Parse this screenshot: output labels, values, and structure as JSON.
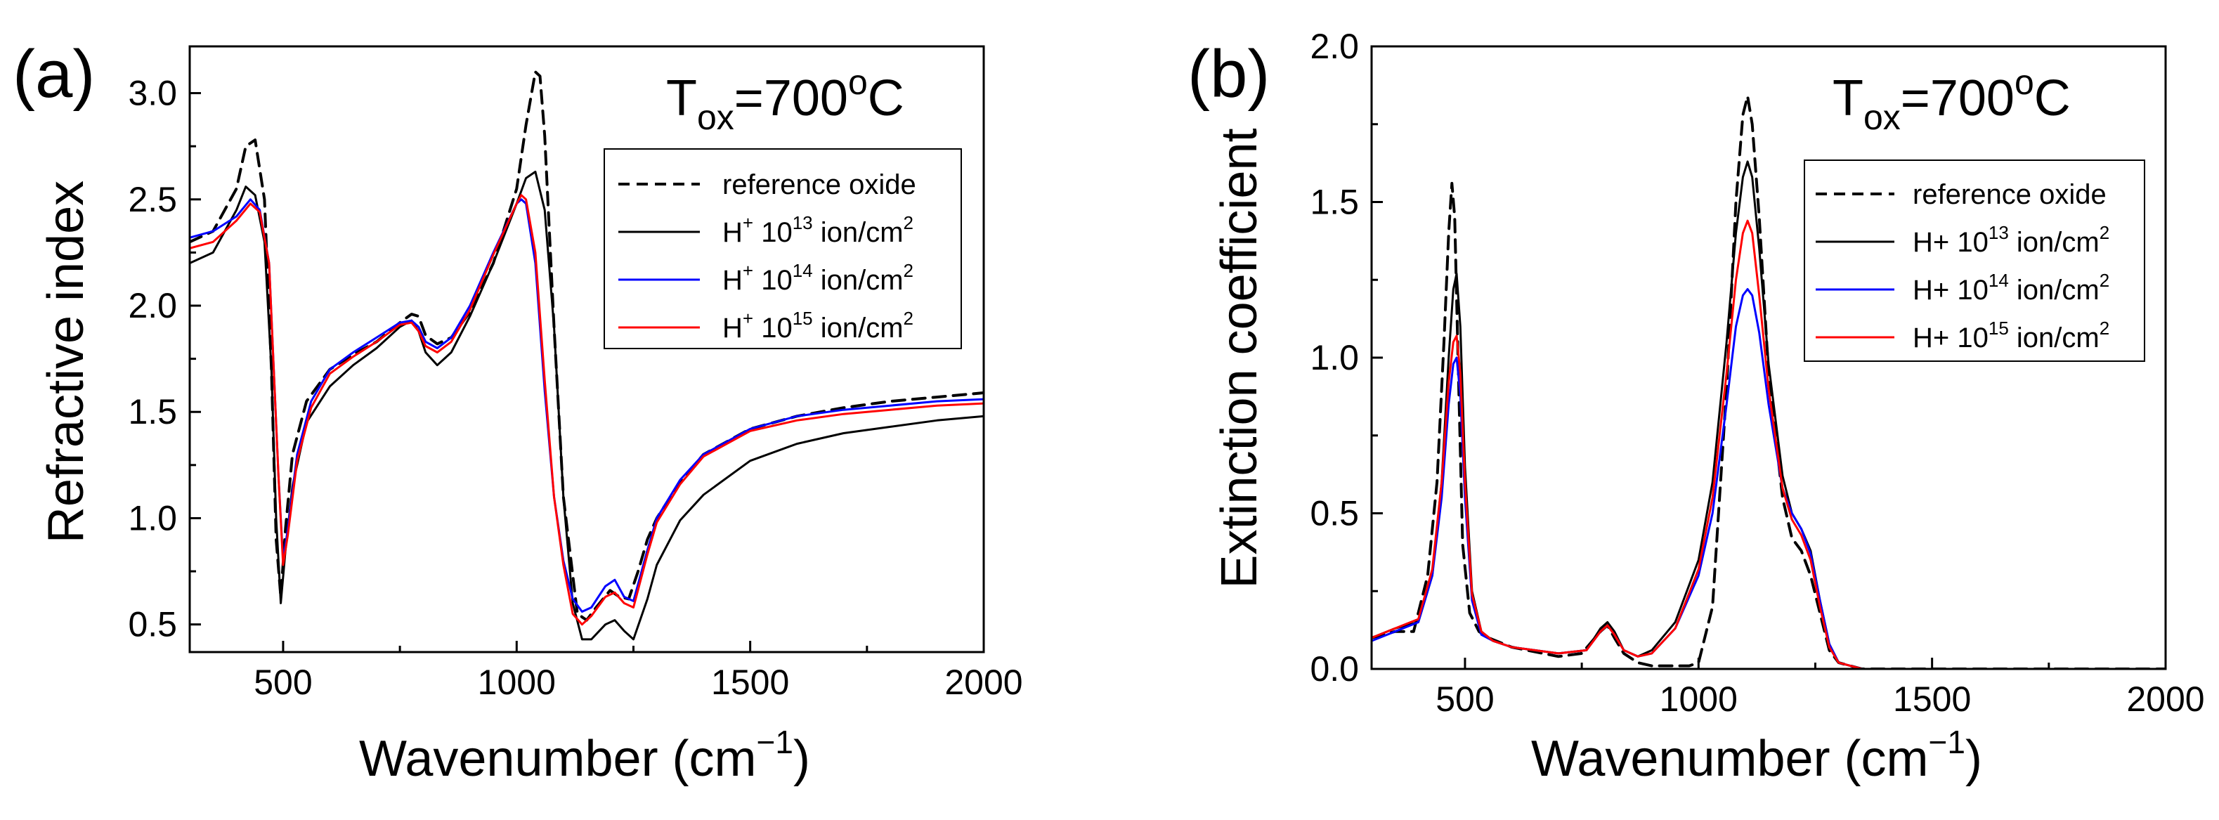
{
  "panels": [
    {
      "label": "(a)",
      "temperature": {
        "prefix": "T",
        "subscript": "ox",
        "equals": "=",
        "value": "700",
        "degree": "o",
        "unit": "C"
      },
      "legend": [
        {
          "text": "reference oxide"
        },
        {
          "base": "H",
          "sup1": "+",
          "mid": " 10",
          "sup2": "13",
          "tail": " ion/cm",
          "sup3": "2"
        },
        {
          "base": "H",
          "sup1": "+",
          "mid": " 10",
          "sup2": "14",
          "tail": " ion/cm",
          "sup3": "2"
        },
        {
          "base": "H",
          "sup1": "+",
          "mid": " 10",
          "sup2": "15",
          "tail": " ion/cm",
          "sup3": "2"
        }
      ],
      "ylabel": "Refractive index",
      "xlabel_main": "Wavenumber (cm",
      "xlabel_sup": "−1",
      "xlabel_end": ")"
    },
    {
      "label": "(b)",
      "temperature": {
        "prefix": "T",
        "subscript": "ox",
        "equals": "=",
        "value": "700",
        "degree": "o",
        "unit": "C"
      },
      "legend": [
        {
          "text": "reference oxide"
        },
        {
          "base": "H",
          "sup1": "",
          "mid": "+ 10",
          "sup2": "13",
          "tail": " ion/cm",
          "sup3": "2"
        },
        {
          "base": "H",
          "sup1": "",
          "mid": "+ 10",
          "sup2": "14",
          "tail": " ion/cm",
          "sup3": "2"
        },
        {
          "base": "H",
          "sup1": "",
          "mid": "+ 10",
          "sup2": "15",
          "tail": " ion/cm",
          "sup3": "2"
        }
      ],
      "ylabel": "Extinction coefficient",
      "xlabel_main": "Wavenumber (cm",
      "xlabel_sup": "−1",
      "xlabel_end": ")"
    }
  ],
  "chart_data": [
    {
      "type": "line",
      "title": "",
      "xlabel": "Wavenumber (cm−1)",
      "ylabel": "Refractive index",
      "xlim": [
        300,
        2000
      ],
      "ylim": [
        0.37,
        3.22
      ],
      "xticks": [
        500,
        1000,
        1500,
        2000
      ],
      "xtick_labels": [
        "500",
        "1000",
        "1500",
        "2000"
      ],
      "yticks": [
        0.5,
        1.0,
        1.5,
        2.0,
        2.5,
        3.0
      ],
      "ytick_labels": [
        "0.5",
        "1.0",
        "1.5",
        "2.0",
        "2.5",
        "3.0"
      ],
      "grid": false,
      "legend_position": "top-right",
      "series": [
        {
          "name": "reference oxide",
          "color": "#000000",
          "dash": "dashed",
          "x": [
            300,
            350,
            400,
            420,
            440,
            460,
            475,
            485,
            495,
            505,
            520,
            550,
            600,
            650,
            700,
            750,
            775,
            790,
            805,
            830,
            860,
            900,
            950,
            1000,
            1020,
            1040,
            1050,
            1060,
            1080,
            1100,
            1130,
            1150,
            1170,
            1200,
            1220,
            1240,
            1260,
            1280,
            1300,
            1350,
            1400,
            1500,
            1600,
            1700,
            1800,
            1900,
            2000
          ],
          "y": [
            2.3,
            2.35,
            2.55,
            2.75,
            2.78,
            2.5,
            1.7,
            0.9,
            0.63,
            0.95,
            1.3,
            1.55,
            1.7,
            1.77,
            1.83,
            1.92,
            1.96,
            1.95,
            1.86,
            1.82,
            1.85,
            1.97,
            2.2,
            2.55,
            2.85,
            3.1,
            3.08,
            2.8,
            1.9,
            1.1,
            0.55,
            0.52,
            0.58,
            0.66,
            0.63,
            0.62,
            0.75,
            0.9,
            1.0,
            1.17,
            1.3,
            1.42,
            1.48,
            1.52,
            1.55,
            1.57,
            1.59
          ]
        },
        {
          "name": "H+ 10^13 ion/cm2",
          "color": "#000000",
          "dash": "solid",
          "x": [
            300,
            350,
            400,
            420,
            440,
            460,
            475,
            485,
            495,
            505,
            520,
            550,
            600,
            650,
            700,
            750,
            775,
            790,
            805,
            830,
            860,
            900,
            950,
            1000,
            1020,
            1040,
            1060,
            1080,
            1100,
            1120,
            1140,
            1160,
            1190,
            1210,
            1230,
            1250,
            1280,
            1300,
            1350,
            1400,
            1500,
            1600,
            1700,
            1800,
            1900,
            2000
          ],
          "y": [
            2.2,
            2.25,
            2.45,
            2.56,
            2.52,
            2.3,
            1.7,
            1.0,
            0.6,
            0.85,
            1.15,
            1.45,
            1.62,
            1.72,
            1.8,
            1.9,
            1.93,
            1.88,
            1.78,
            1.72,
            1.78,
            1.95,
            2.2,
            2.48,
            2.6,
            2.63,
            2.45,
            1.9,
            1.1,
            0.6,
            0.43,
            0.43,
            0.5,
            0.52,
            0.47,
            0.43,
            0.62,
            0.78,
            0.99,
            1.11,
            1.27,
            1.35,
            1.4,
            1.43,
            1.46,
            1.48
          ]
        },
        {
          "name": "H+ 10^14 ion/cm2",
          "color": "#0000ff",
          "dash": "solid",
          "x": [
            300,
            350,
            400,
            430,
            450,
            470,
            480,
            490,
            500,
            510,
            530,
            560,
            600,
            650,
            700,
            750,
            775,
            790,
            805,
            830,
            860,
            900,
            950,
            1000,
            1010,
            1020,
            1040,
            1060,
            1080,
            1100,
            1120,
            1140,
            1160,
            1190,
            1210,
            1230,
            1250,
            1280,
            1300,
            1350,
            1400,
            1500,
            1600,
            1700,
            1800,
            1900,
            2000
          ],
          "y": [
            2.32,
            2.35,
            2.42,
            2.5,
            2.45,
            2.2,
            1.7,
            1.2,
            0.8,
            0.95,
            1.3,
            1.55,
            1.7,
            1.78,
            1.85,
            1.92,
            1.93,
            1.9,
            1.83,
            1.8,
            1.85,
            2.0,
            2.25,
            2.48,
            2.5,
            2.48,
            2.2,
            1.6,
            1.1,
            0.8,
            0.62,
            0.56,
            0.58,
            0.68,
            0.71,
            0.63,
            0.61,
            0.85,
            1.0,
            1.18,
            1.3,
            1.42,
            1.48,
            1.51,
            1.53,
            1.55,
            1.56
          ]
        },
        {
          "name": "H+ 10^15 ion/cm2",
          "color": "#ff0000",
          "dash": "solid",
          "x": [
            300,
            350,
            400,
            430,
            450,
            470,
            480,
            490,
            500,
            510,
            530,
            560,
            600,
            650,
            700,
            750,
            775,
            790,
            805,
            830,
            860,
            900,
            950,
            1000,
            1010,
            1020,
            1040,
            1060,
            1080,
            1100,
            1120,
            1140,
            1160,
            1190,
            1210,
            1230,
            1250,
            1280,
            1300,
            1350,
            1400,
            1500,
            1600,
            1700,
            1800,
            1900,
            2000
          ],
          "y": [
            2.27,
            2.3,
            2.4,
            2.48,
            2.44,
            2.2,
            1.7,
            1.2,
            0.78,
            0.92,
            1.27,
            1.52,
            1.68,
            1.76,
            1.83,
            1.91,
            1.92,
            1.88,
            1.81,
            1.78,
            1.83,
            1.98,
            2.24,
            2.48,
            2.52,
            2.5,
            2.25,
            1.65,
            1.1,
            0.78,
            0.55,
            0.5,
            0.54,
            0.63,
            0.65,
            0.6,
            0.58,
            0.83,
            0.98,
            1.16,
            1.29,
            1.41,
            1.46,
            1.49,
            1.51,
            1.53,
            1.54
          ]
        }
      ]
    },
    {
      "type": "line",
      "title": "",
      "xlabel": "Wavenumber (cm−1)",
      "ylabel": "Extinction coefficient",
      "xlim": [
        300,
        2000
      ],
      "ylim": [
        0.0,
        2.0
      ],
      "xticks": [
        500,
        1000,
        1500,
        2000
      ],
      "xtick_labels": [
        "500",
        "1000",
        "1500",
        "2000"
      ],
      "yticks": [
        0.0,
        0.5,
        1.0,
        1.5,
        2.0
      ],
      "ytick_labels": [
        "0.0",
        "0.5",
        "1.0",
        "1.5",
        "2.0"
      ],
      "grid": false,
      "legend_position": "top-right",
      "series": [
        {
          "name": "reference oxide",
          "color": "#000000",
          "dash": "dashed",
          "x": [
            300,
            350,
            390,
            420,
            440,
            455,
            465,
            472,
            478,
            485,
            495,
            510,
            530,
            550,
            600,
            700,
            750,
            790,
            805,
            820,
            840,
            870,
            900,
            950,
            980,
            1000,
            1030,
            1060,
            1080,
            1095,
            1105,
            1115,
            1130,
            1150,
            1180,
            1200,
            1220,
            1240,
            1260,
            1280,
            1300,
            1350,
            1400,
            1500,
            1700,
            2000
          ],
          "y": [
            0.1,
            0.12,
            0.12,
            0.3,
            0.6,
            1.05,
            1.4,
            1.56,
            1.45,
            1.0,
            0.4,
            0.18,
            0.12,
            0.1,
            0.07,
            0.04,
            0.05,
            0.12,
            0.14,
            0.1,
            0.05,
            0.02,
            0.01,
            0.01,
            0.01,
            0.02,
            0.2,
            0.9,
            1.5,
            1.78,
            1.84,
            1.75,
            1.45,
            0.95,
            0.55,
            0.42,
            0.38,
            0.3,
            0.18,
            0.06,
            0.02,
            0.0,
            0.0,
            0.0,
            0.0,
            0.0
          ]
        },
        {
          "name": "H+ 10^13 ion/cm2",
          "color": "#000000",
          "dash": "solid",
          "x": [
            300,
            350,
            400,
            430,
            450,
            465,
            475,
            482,
            490,
            500,
            515,
            535,
            560,
            600,
            700,
            760,
            790,
            805,
            820,
            840,
            870,
            900,
            950,
            1000,
            1030,
            1060,
            1080,
            1095,
            1105,
            1115,
            1130,
            1150,
            1180,
            1200,
            1220,
            1240,
            1260,
            1280,
            1300,
            1350,
            1400,
            1500,
            1700,
            2000
          ],
          "y": [
            0.1,
            0.13,
            0.15,
            0.3,
            0.6,
            1.0,
            1.22,
            1.27,
            1.1,
            0.65,
            0.25,
            0.12,
            0.09,
            0.07,
            0.05,
            0.06,
            0.13,
            0.15,
            0.12,
            0.06,
            0.04,
            0.06,
            0.15,
            0.35,
            0.6,
            1.05,
            1.4,
            1.58,
            1.63,
            1.58,
            1.35,
            0.98,
            0.62,
            0.5,
            0.45,
            0.38,
            0.22,
            0.08,
            0.02,
            0.0,
            0.0,
            0.0,
            0.0,
            0.0
          ]
        },
        {
          "name": "H+ 10^14 ion/cm2",
          "color": "#0000ff",
          "dash": "solid",
          "x": [
            300,
            350,
            400,
            430,
            450,
            465,
            475,
            482,
            490,
            500,
            515,
            535,
            560,
            600,
            700,
            760,
            790,
            805,
            820,
            840,
            870,
            900,
            950,
            1000,
            1030,
            1060,
            1080,
            1095,
            1105,
            1115,
            1130,
            1150,
            1180,
            1200,
            1220,
            1240,
            1260,
            1280,
            1300,
            1350,
            1400,
            1500,
            1700,
            2000
          ],
          "y": [
            0.09,
            0.12,
            0.15,
            0.3,
            0.55,
            0.85,
            0.98,
            1.0,
            0.88,
            0.55,
            0.22,
            0.11,
            0.09,
            0.07,
            0.05,
            0.06,
            0.12,
            0.14,
            0.11,
            0.06,
            0.04,
            0.05,
            0.13,
            0.3,
            0.5,
            0.85,
            1.1,
            1.2,
            1.22,
            1.2,
            1.08,
            0.85,
            0.58,
            0.5,
            0.45,
            0.37,
            0.22,
            0.08,
            0.02,
            0.0,
            0.0,
            0.0,
            0.0,
            0.0
          ]
        },
        {
          "name": "H+ 10^15 ion/cm2",
          "color": "#ff0000",
          "dash": "solid",
          "x": [
            300,
            350,
            400,
            430,
            450,
            465,
            475,
            482,
            490,
            500,
            515,
            535,
            560,
            600,
            700,
            760,
            790,
            805,
            820,
            840,
            870,
            900,
            950,
            1000,
            1030,
            1060,
            1080,
            1095,
            1105,
            1115,
            1130,
            1150,
            1180,
            1200,
            1220,
            1240,
            1260,
            1280,
            1300,
            1350,
            1400,
            1500,
            1700,
            2000
          ],
          "y": [
            0.1,
            0.13,
            0.16,
            0.32,
            0.6,
            0.92,
            1.05,
            1.07,
            0.95,
            0.6,
            0.24,
            0.12,
            0.09,
            0.07,
            0.05,
            0.06,
            0.12,
            0.14,
            0.11,
            0.06,
            0.04,
            0.05,
            0.13,
            0.32,
            0.55,
            0.95,
            1.25,
            1.4,
            1.44,
            1.4,
            1.2,
            0.9,
            0.58,
            0.48,
            0.43,
            0.35,
            0.2,
            0.07,
            0.02,
            0.0,
            0.0,
            0.0,
            0.0,
            0.0
          ]
        }
      ]
    }
  ]
}
